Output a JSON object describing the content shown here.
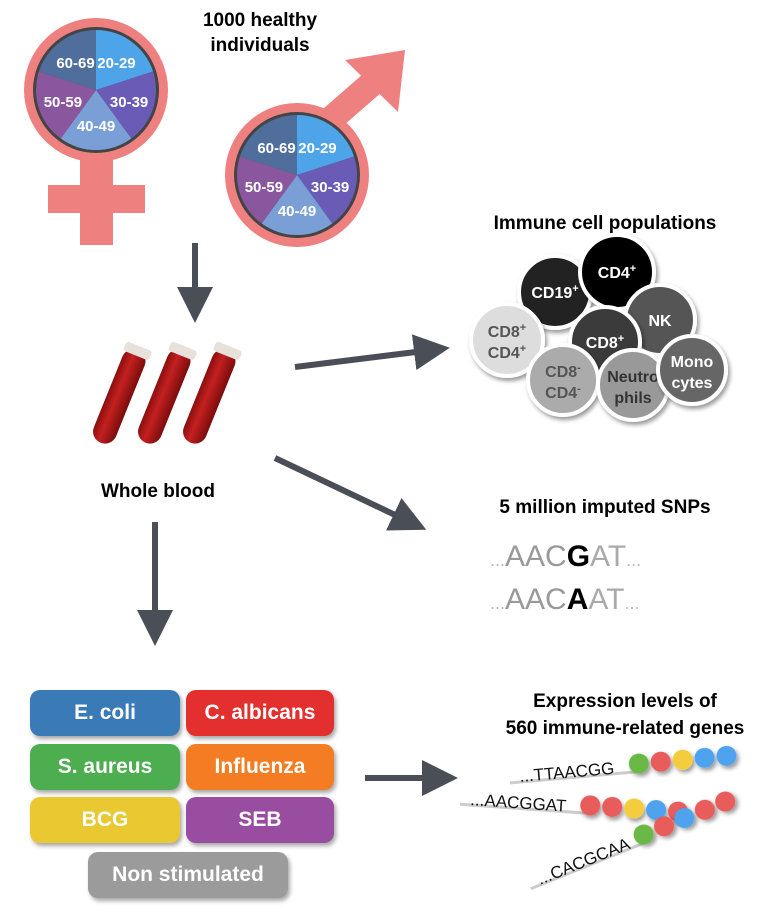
{
  "cohort": {
    "title_line1": "1000 healthy",
    "title_line2": "individuals",
    "age_groups": [
      "20-29",
      "30-39",
      "40-49",
      "50-59",
      "60-69"
    ],
    "age_colors": [
      "#4ea4e8",
      "#6a5cb6",
      "#7a9fd6",
      "#8a579f",
      "#4f6e9c"
    ],
    "symbol_color": "#ee8080"
  },
  "sample": {
    "label": "Whole blood"
  },
  "immune": {
    "title": "Immune cell populations",
    "cells": [
      {
        "l1": "CD19",
        "s1": "+",
        "l2": "",
        "s2": "",
        "color": "#222222",
        "text": "#ffffff"
      },
      {
        "l1": "CD4",
        "s1": "+",
        "l2": "",
        "s2": "",
        "color": "#000000",
        "text": "#ffffff"
      },
      {
        "l1": "NK",
        "s1": "",
        "l2": "",
        "s2": "",
        "color": "#555555",
        "text": "#ffffff"
      },
      {
        "l1": "CD8",
        "s1": "+",
        "l2": "CD4",
        "s2": "+",
        "color": "#dddddd",
        "text": "#555555"
      },
      {
        "l1": "CD8",
        "s1": "+",
        "l2": "",
        "s2": "",
        "color": "#3a3a3a",
        "text": "#ffffff"
      },
      {
        "l1": "CD8",
        "s1": "-",
        "l2": "CD4",
        "s2": "-",
        "color": "#ababab",
        "text": "#555555"
      },
      {
        "l1": "Neutro",
        "s1": "",
        "l2": "phils",
        "s2": "",
        "color": "#999999",
        "text": "#333333"
      },
      {
        "l1": "Mono",
        "s1": "",
        "l2": "cytes",
        "s2": "",
        "color": "#666666",
        "text": "#ffffff"
      }
    ]
  },
  "snps": {
    "title": "5 million imputed SNPs",
    "seq1": {
      "pre": "AAC",
      "snp": "G",
      "post": "AT"
    },
    "seq2": {
      "pre": "AAC",
      "snp": "A",
      "post": "AT"
    },
    "ellipsis": "..."
  },
  "stimuli": [
    {
      "label": "E. coli",
      "color": "#3a7ab6"
    },
    {
      "label": "C. albicans",
      "color": "#e3302f"
    },
    {
      "label": "S. aureus",
      "color": "#4cae4f"
    },
    {
      "label": "Influenza",
      "color": "#f47c22"
    },
    {
      "label": "BCG",
      "color": "#e9c832"
    },
    {
      "label": "SEB",
      "color": "#994da0"
    },
    {
      "label": "Non stimulated",
      "color": "#9b9b9b"
    }
  ],
  "expression": {
    "title_line1": "Expression levels of",
    "title_line2": "560 immune-related genes",
    "seqs": [
      "...TTAACGG",
      "...AACGGAT",
      "...CACGCAA"
    ],
    "beads": [
      [
        "#6bb844",
        "#e85c5c",
        "#f3cd3c",
        "#4fa3ee",
        "#4fa3ee"
      ],
      [
        "#e85c5c",
        "#e85c5c",
        "#f3cd3c",
        "#4fa3ee",
        "#e85c5c"
      ],
      [
        "#6bb844",
        "#e85c5c",
        "#4fa3ee",
        "#e85c5c",
        "#e85c5c"
      ]
    ]
  }
}
